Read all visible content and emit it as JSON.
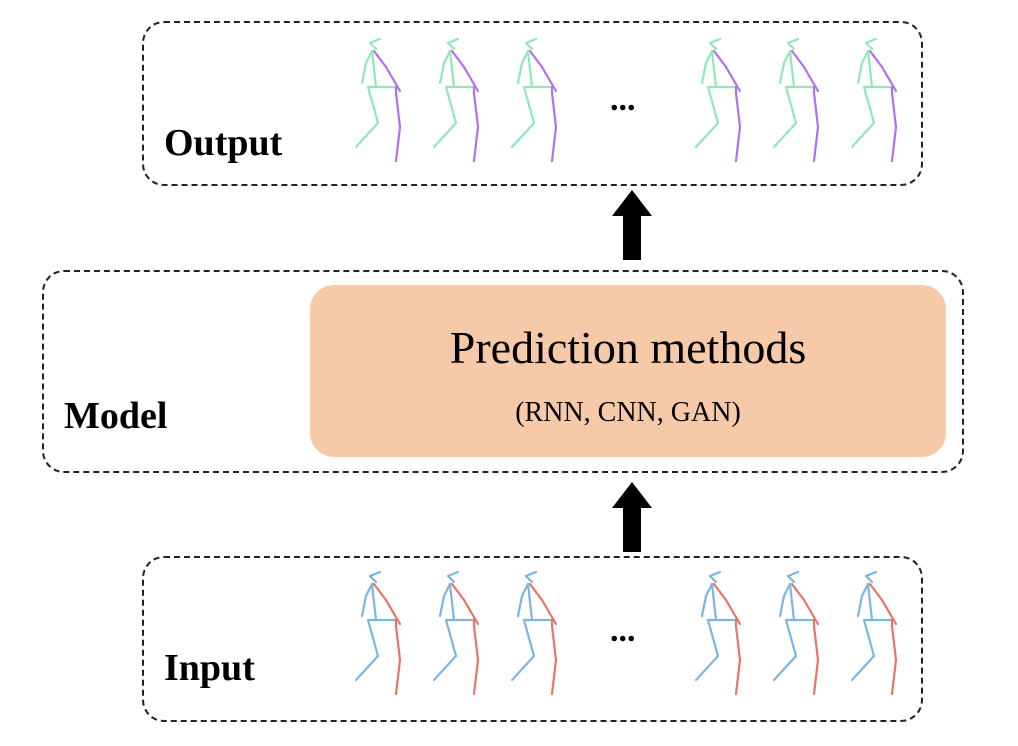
{
  "output": {
    "label": "Output",
    "ellipsis": "...",
    "frames": 6,
    "colors": {
      "primary": "#8fe8b8",
      "secondary": "#b46ef0"
    }
  },
  "model": {
    "label": "Model",
    "method_title": "Prediction methods",
    "method_subtitle": "(RNN, CNN, GAN)",
    "box_color": "#f6c9a8"
  },
  "input": {
    "label": "Input",
    "ellipsis": "...",
    "frames": 6,
    "colors": {
      "primary": "#7ab6e2",
      "secondary": "#e87466"
    }
  },
  "arrows": [
    {
      "name": "arrow-input-to-model",
      "direction": "up"
    },
    {
      "name": "arrow-model-to-output",
      "direction": "up"
    }
  ]
}
